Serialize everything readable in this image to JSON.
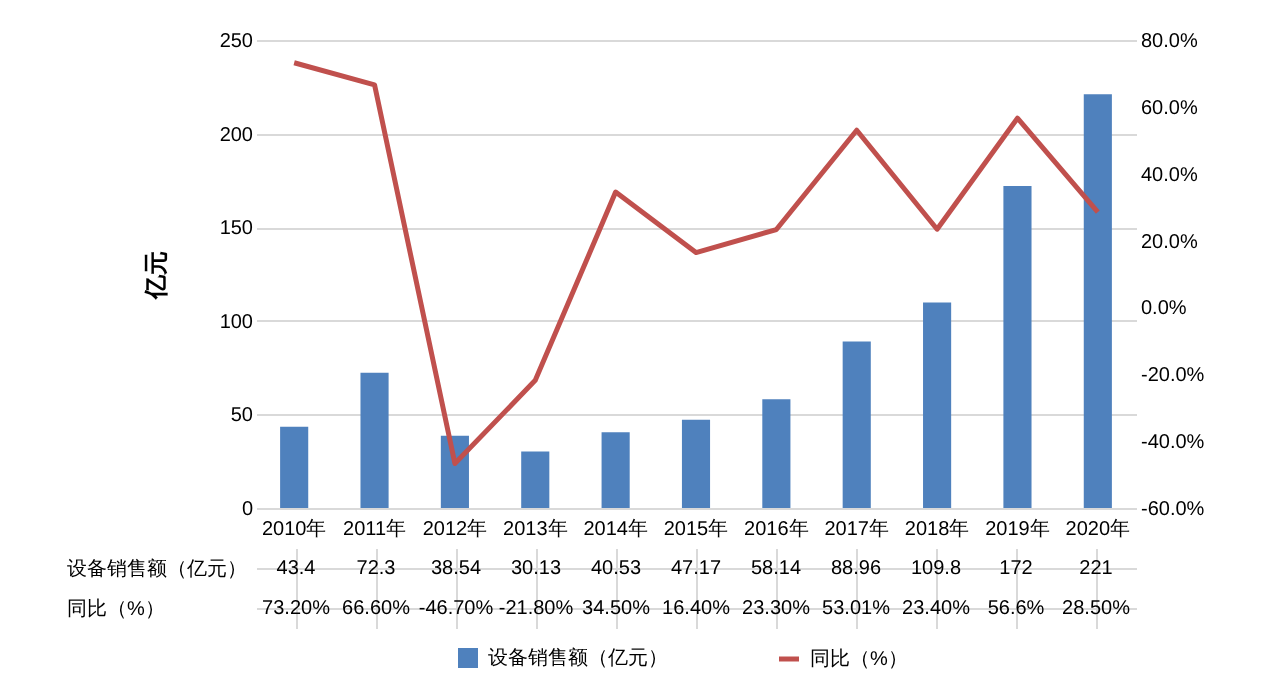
{
  "chart_data": {
    "type": "bar",
    "ylabel": "亿元",
    "categories": [
      "2010年",
      "2011年",
      "2012年",
      "2013年",
      "2014年",
      "2015年",
      "2016年",
      "2017年",
      "2018年",
      "2019年",
      "2020年"
    ],
    "series": [
      {
        "name": "设备销售额（亿元）",
        "color": "#4f81bd",
        "values": [
          43.4,
          72.3,
          38.54,
          30.13,
          40.53,
          47.17,
          58.14,
          88.96,
          109.8,
          172,
          221
        ],
        "value_labels": [
          "43.4",
          "72.3",
          "38.54",
          "30.13",
          "40.53",
          "47.17",
          "58.14",
          "88.96",
          "109.8",
          "172",
          "221"
        ]
      },
      {
        "name": "同比（%）",
        "type": "line",
        "axis": "y2",
        "color": "#c0504d",
        "values": [
          73.2,
          66.6,
          -46.7,
          -21.8,
          34.5,
          16.4,
          23.3,
          53.01,
          23.4,
          56.6,
          28.5
        ],
        "value_labels": [
          "73.20%",
          "66.60%",
          "-46.70%",
          "-21.80%",
          "34.50%",
          "16.40%",
          "23.30%",
          "53.01%",
          "23.40%",
          "56.6%",
          "28.50%"
        ]
      }
    ],
    "ylim": [
      0,
      250
    ],
    "yticks": [
      0,
      50,
      100,
      150,
      200,
      250
    ],
    "y2lim": [
      -60,
      80
    ],
    "y2ticks": [
      {
        "value": -60,
        "label": "-60.0%"
      },
      {
        "value": -40,
        "label": "-40.0%"
      },
      {
        "value": -20,
        "label": "-20.0%"
      },
      {
        "value": 0,
        "label": "0.0%"
      },
      {
        "value": 20,
        "label": "20.0%"
      },
      {
        "value": 40,
        "label": "40.0%"
      },
      {
        "value": 60,
        "label": "60.0%"
      },
      {
        "value": 80,
        "label": "80.0%"
      }
    ],
    "grid": "y",
    "legend": "bottom",
    "marker": "none",
    "line_style": "solid"
  }
}
